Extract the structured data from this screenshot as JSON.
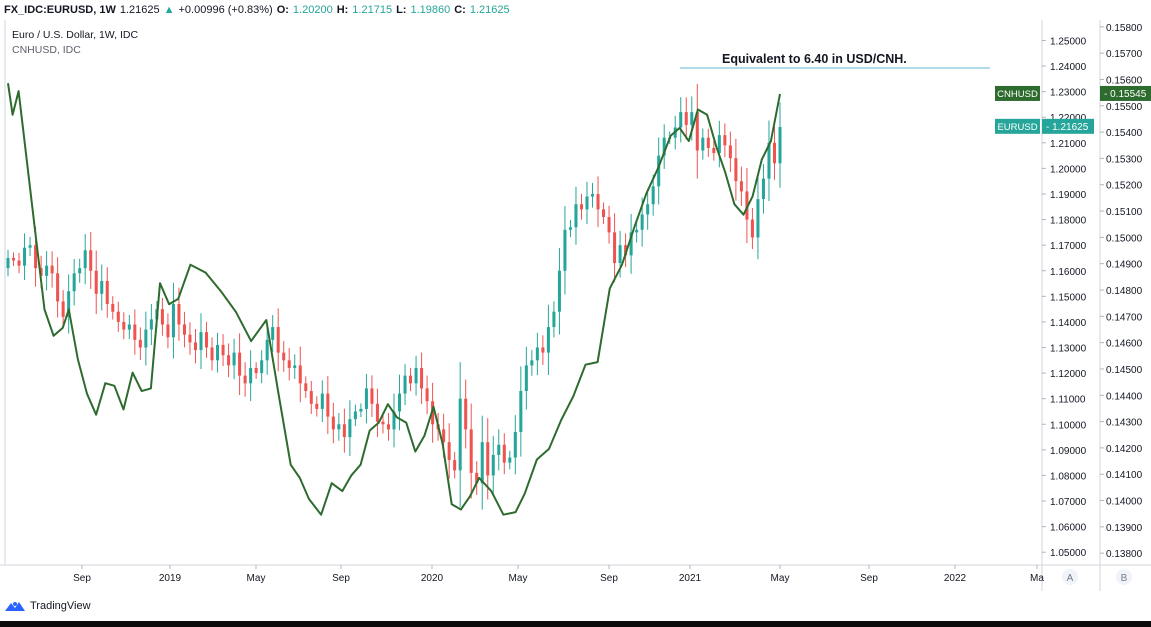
{
  "header": {
    "symbol": "FX_IDC:EURUSD, 1W",
    "last": "1.21625",
    "arrow": "▲",
    "change": "+0.00996 (+0.83%)",
    "o_label": "O:",
    "o": "1.20200",
    "h_label": "H:",
    "h": "1.21715",
    "l_label": "L:",
    "l": "1.19860",
    "c_label": "C:",
    "c": "1.21625"
  },
  "legend": {
    "main": "Euro / U.S. Dollar, 1W, IDC",
    "overlay": "CNHUSD, IDC"
  },
  "annotation": "Equivalent to 6.40 in USD/CNH.",
  "footer": {
    "brand": "TradingView",
    "scale_a": "A",
    "scale_b": "B"
  },
  "colors": {
    "up": "#26a69a",
    "down": "#ef5350",
    "line": "#2e6b2e",
    "cnh_badge": "#2e6b2e",
    "eur_badge": "#26a69a",
    "annotation_line": "#5fb7d4"
  },
  "chart_data": {
    "type": "candlestick+line",
    "title": "Euro / U.S. Dollar, 1W, IDC",
    "x_ticks": [
      "Sep",
      "2019",
      "May",
      "Sep",
      "2020",
      "May",
      "Sep",
      "2021",
      "May",
      "Sep",
      "2022",
      "Ma"
    ],
    "left_axis": {
      "series": "EURUSD",
      "range": [
        1.045,
        1.258
      ],
      "ticks": [
        "1.25000",
        "1.24000",
        "1.23000",
        "1.22000",
        "1.21000",
        "1.20000",
        "1.19000",
        "1.18000",
        "1.17000",
        "1.16000",
        "1.15000",
        "1.14000",
        "1.13000",
        "1.12000",
        "1.11000",
        "1.10000",
        "1.09000",
        "1.08000",
        "1.07000",
        "1.06000",
        "1.05000"
      ],
      "last_label": "EURUSD",
      "last_value": "1.21625"
    },
    "right_axis": {
      "series": "CNHUSD",
      "range": [
        0.13755,
        0.15826
      ],
      "ticks": [
        "0.15800",
        "0.15700",
        "0.15600",
        "0.15500",
        "0.15400",
        "0.15300",
        "0.15200",
        "0.15100",
        "0.15000",
        "0.14900",
        "0.14800",
        "0.14700",
        "0.14600",
        "0.14500",
        "0.14400",
        "0.14300",
        "0.14200",
        "0.14100",
        "0.14000",
        "0.13900",
        "0.13800"
      ],
      "last_label": "CNHUSD",
      "last_value": "0.15545"
    },
    "eurusd_close": [
      1.165,
      1.164,
      1.162,
      1.169,
      1.17,
      1.161,
      1.158,
      1.162,
      1.159,
      1.148,
      1.142,
      1.152,
      1.159,
      1.161,
      1.168,
      1.16,
      1.151,
      1.156,
      1.147,
      1.144,
      1.14,
      1.137,
      1.139,
      1.133,
      1.13,
      1.137,
      1.141,
      1.145,
      1.139,
      1.134,
      1.147,
      1.139,
      1.135,
      1.132,
      1.129,
      1.136,
      1.13,
      1.125,
      1.131,
      1.127,
      1.123,
      1.128,
      1.119,
      1.116,
      1.122,
      1.12,
      1.125,
      1.133,
      1.138,
      1.128,
      1.125,
      1.122,
      1.123,
      1.116,
      1.113,
      1.108,
      1.106,
      1.112,
      1.103,
      1.098,
      1.1,
      1.095,
      1.102,
      1.105,
      1.106,
      1.114,
      1.108,
      1.101,
      1.1,
      1.098,
      1.105,
      1.112,
      1.119,
      1.116,
      1.122,
      1.114,
      1.109,
      1.1,
      1.098,
      1.093,
      1.086,
      1.082,
      1.11,
      1.098,
      1.081,
      1.077,
      1.093,
      1.08,
      1.088,
      1.092,
      1.085,
      1.087,
      1.097,
      1.113,
      1.123,
      1.125,
      1.13,
      1.128,
      1.138,
      1.144,
      1.16,
      1.176,
      1.177,
      1.186,
      1.184,
      1.189,
      1.19,
      1.184,
      1.181,
      1.175,
      1.163,
      1.17,
      1.166,
      1.175,
      1.176,
      1.182,
      1.186,
      1.193,
      1.205,
      1.212,
      1.212,
      1.216,
      1.222,
      1.217,
      1.222,
      1.207,
      1.212,
      1.208,
      1.206,
      1.213,
      1.209,
      1.204,
      1.195,
      1.191,
      1.18,
      1.173,
      1.188,
      1.196,
      1.21,
      1.202,
      1.2162
    ],
    "cnhusd_line": [
      [
        0,
        0.15586
      ],
      [
        3,
        0.15466
      ],
      [
        7,
        0.15556
      ],
      [
        18,
        0.15016
      ],
      [
        24,
        0.14726
      ],
      [
        30,
        0.14626
      ],
      [
        36,
        0.14656
      ],
      [
        40,
        0.14726
      ],
      [
        46,
        0.14536
      ],
      [
        52,
        0.14406
      ],
      [
        58,
        0.14326
      ],
      [
        64,
        0.14446
      ],
      [
        70,
        0.14436
      ],
      [
        76,
        0.14346
      ],
      [
        82,
        0.14486
      ],
      [
        88,
        0.14416
      ],
      [
        94,
        0.14426
      ],
      [
        100,
        0.14826
      ],
      [
        106,
        0.14746
      ],
      [
        112,
        0.14766
      ],
      [
        120,
        0.14896
      ],
      [
        130,
        0.14866
      ],
      [
        140,
        0.14796
      ],
      [
        150,
        0.14716
      ],
      [
        160,
        0.14606
      ],
      [
        170,
        0.14686
      ],
      [
        178,
        0.14406
      ],
      [
        186,
        0.14136
      ],
      [
        192,
        0.14086
      ],
      [
        198,
        0.14006
      ],
      [
        206,
        0.13946
      ],
      [
        213,
        0.14066
      ],
      [
        220,
        0.14036
      ],
      [
        226,
        0.14096
      ],
      [
        232,
        0.14136
      ],
      [
        238,
        0.14266
      ],
      [
        244,
        0.14296
      ],
      [
        250,
        0.14366
      ],
      [
        256,
        0.14316
      ],
      [
        262,
        0.14296
      ],
      [
        268,
        0.14186
      ],
      [
        274,
        0.14246
      ],
      [
        280,
        0.14356
      ],
      [
        286,
        0.14216
      ],
      [
        292,
        0.13986
      ],
      [
        298,
        0.13966
      ],
      [
        304,
        0.14016
      ],
      [
        310,
        0.14086
      ],
      [
        318,
        0.14036
      ],
      [
        326,
        0.13946
      ],
      [
        334,
        0.13956
      ],
      [
        340,
        0.14026
      ],
      [
        348,
        0.14156
      ],
      [
        356,
        0.14196
      ],
      [
        364,
        0.14306
      ],
      [
        372,
        0.14396
      ],
      [
        380,
        0.14516
      ],
      [
        388,
        0.14526
      ],
      [
        396,
        0.14806
      ],
      [
        404,
        0.14896
      ],
      [
        412,
        0.15036
      ],
      [
        420,
        0.15166
      ],
      [
        428,
        0.15266
      ],
      [
        436,
        0.15386
      ],
      [
        442,
        0.15416
      ],
      [
        448,
        0.15366
      ],
      [
        454,
        0.15486
      ],
      [
        460,
        0.15466
      ],
      [
        466,
        0.15346
      ],
      [
        472,
        0.15246
      ],
      [
        478,
        0.15126
      ],
      [
        484,
        0.15086
      ],
      [
        490,
        0.15156
      ],
      [
        496,
        0.15296
      ],
      [
        502,
        0.15366
      ],
      [
        508,
        0.15545
      ]
    ]
  }
}
